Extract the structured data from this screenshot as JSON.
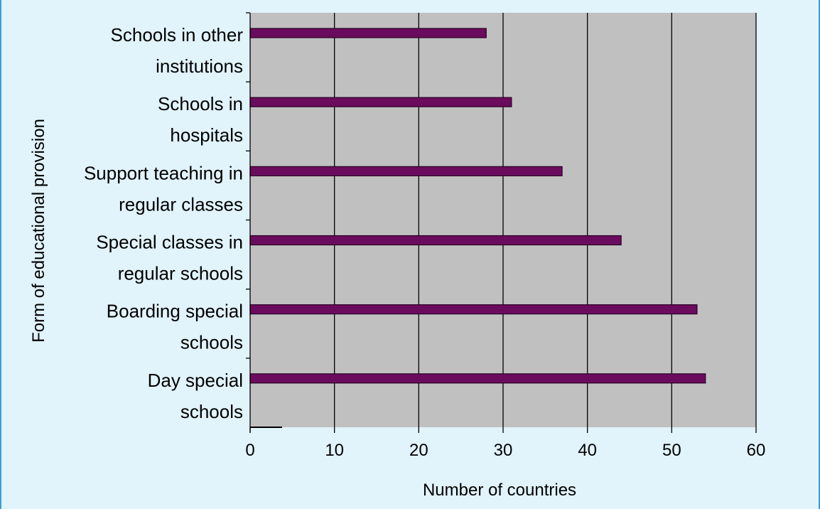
{
  "chart_data": {
    "type": "bar",
    "orientation": "horizontal",
    "categories": [
      [
        "Day special",
        "schools"
      ],
      [
        "Boarding special",
        "schools"
      ],
      [
        "Special classes in",
        "regular schools"
      ],
      [
        "Support teaching in",
        "regular classes"
      ],
      [
        "Schools in",
        "hospitals"
      ],
      [
        "Schools in other",
        "institutions"
      ]
    ],
    "values": [
      54,
      53,
      44,
      37,
      31,
      28
    ],
    "xlabel": "Number of countries",
    "ylabel": "Form of educational provision",
    "xlim": [
      0,
      60
    ],
    "xticks": [
      "0",
      "10",
      "20",
      "30",
      "40",
      "50",
      "60"
    ],
    "grid": "vertical",
    "legend": "none",
    "colors": {
      "bar": "#6b0b5e",
      "bar_edge": "#2a0226",
      "plot_background": "#c0c0c0",
      "page_background": "#e1f3fb",
      "frame": "#3aa0d2"
    }
  }
}
